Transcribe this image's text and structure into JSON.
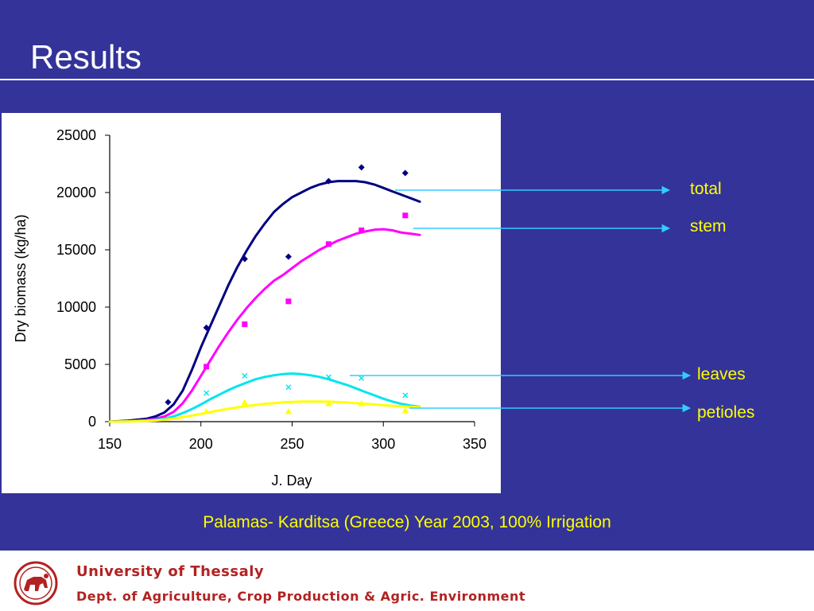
{
  "slide": {
    "title": "Results",
    "caption": "Palamas- Karditsa (Greece) Year 2003, 100% Irrigation",
    "colors": {
      "background": "#333399",
      "label_text": "#ffff00",
      "arrow": "#33ccff",
      "footer_text": "#b22222"
    }
  },
  "callouts": [
    {
      "label": "total"
    },
    {
      "label": "stem"
    },
    {
      "label": "leaves"
    },
    {
      "label": "petioles"
    }
  ],
  "footer": {
    "university": "University of Thessaly",
    "department": "Dept. of Agriculture, Crop Production & Agric. Environment",
    "logo_icon": "university-seal-icon"
  },
  "chart_data": {
    "type": "scatter",
    "xlabel": "J. Day",
    "ylabel": "Dry biomass (kg/ha)",
    "xlim": [
      150,
      350
    ],
    "ylim": [
      0,
      25000
    ],
    "xticks": [
      150,
      200,
      250,
      300,
      350
    ],
    "yticks": [
      0,
      5000,
      10000,
      15000,
      20000,
      25000
    ],
    "grid": false,
    "legend": "none",
    "series": [
      {
        "name": "total",
        "color": "#000080",
        "marker": "diamond",
        "observed": {
          "x": [
            182,
            203,
            224,
            248,
            270,
            288,
            312
          ],
          "y": [
            1700,
            8200,
            14200,
            14400,
            21000,
            22200,
            21700
          ]
        },
        "simulated": {
          "x": [
            150,
            160,
            170,
            175,
            180,
            185,
            190,
            195,
            200,
            205,
            210,
            215,
            220,
            225,
            230,
            235,
            240,
            245,
            250,
            255,
            260,
            265,
            270,
            275,
            280,
            285,
            290,
            295,
            300,
            305,
            310,
            315,
            320
          ],
          "y": [
            0,
            80,
            250,
            450,
            800,
            1500,
            2700,
            4500,
            6500,
            8300,
            10100,
            11900,
            13500,
            14900,
            16200,
            17300,
            18300,
            19000,
            19600,
            20000,
            20400,
            20700,
            20900,
            21000,
            21000,
            21000,
            20900,
            20700,
            20400,
            20100,
            19800,
            19500,
            19200
          ]
        }
      },
      {
        "name": "stem",
        "color": "#ff00ff",
        "marker": "square",
        "observed": {
          "x": [
            203,
            224,
            248,
            270,
            288,
            312
          ],
          "y": [
            4800,
            8500,
            10500,
            15500,
            16700,
            18000
          ]
        },
        "simulated": {
          "x": [
            150,
            160,
            170,
            175,
            180,
            185,
            190,
            195,
            200,
            205,
            210,
            215,
            220,
            225,
            230,
            235,
            240,
            245,
            250,
            255,
            260,
            265,
            270,
            275,
            280,
            285,
            290,
            295,
            300,
            305,
            310,
            315,
            320
          ],
          "y": [
            0,
            40,
            130,
            250,
            450,
            850,
            1600,
            2700,
            4000,
            5300,
            6600,
            7800,
            8900,
            9900,
            10800,
            11600,
            12300,
            12800,
            13400,
            14000,
            14500,
            15000,
            15400,
            15800,
            16100,
            16400,
            16600,
            16750,
            16800,
            16700,
            16500,
            16400,
            16300
          ]
        }
      },
      {
        "name": "leaves",
        "color": "#00e5ee",
        "marker": "x",
        "observed": {
          "x": [
            203,
            224,
            248,
            270,
            288,
            312
          ],
          "y": [
            2500,
            4000,
            3000,
            3900,
            3800,
            2300
          ]
        },
        "simulated": {
          "x": [
            150,
            160,
            170,
            175,
            180,
            185,
            190,
            195,
            200,
            205,
            210,
            215,
            220,
            225,
            230,
            235,
            240,
            245,
            250,
            255,
            260,
            265,
            270,
            275,
            280,
            285,
            290,
            295,
            300,
            305,
            310,
            315,
            320
          ],
          "y": [
            0,
            30,
            80,
            150,
            260,
            450,
            750,
            1100,
            1500,
            1950,
            2350,
            2750,
            3100,
            3400,
            3700,
            3900,
            4050,
            4150,
            4200,
            4150,
            4050,
            3900,
            3700,
            3450,
            3200,
            2900,
            2600,
            2300,
            2000,
            1750,
            1550,
            1400,
            1300
          ]
        }
      },
      {
        "name": "petioles",
        "color": "#ffff00",
        "marker": "triangle",
        "observed": {
          "x": [
            203,
            224,
            248,
            270,
            288,
            312
          ],
          "y": [
            900,
            1700,
            900,
            1600,
            1600,
            1000
          ]
        },
        "simulated": {
          "x": [
            150,
            160,
            170,
            175,
            180,
            185,
            190,
            195,
            200,
            205,
            210,
            215,
            220,
            225,
            230,
            235,
            240,
            245,
            250,
            255,
            260,
            265,
            270,
            275,
            280,
            285,
            290,
            295,
            300,
            305,
            310,
            315,
            320
          ],
          "y": [
            0,
            20,
            60,
            100,
            170,
            260,
            390,
            530,
            680,
            830,
            980,
            1120,
            1250,
            1360,
            1460,
            1550,
            1620,
            1680,
            1720,
            1750,
            1760,
            1760,
            1740,
            1710,
            1670,
            1620,
            1560,
            1500,
            1440,
            1380,
            1330,
            1290,
            1260
          ]
        }
      }
    ]
  }
}
